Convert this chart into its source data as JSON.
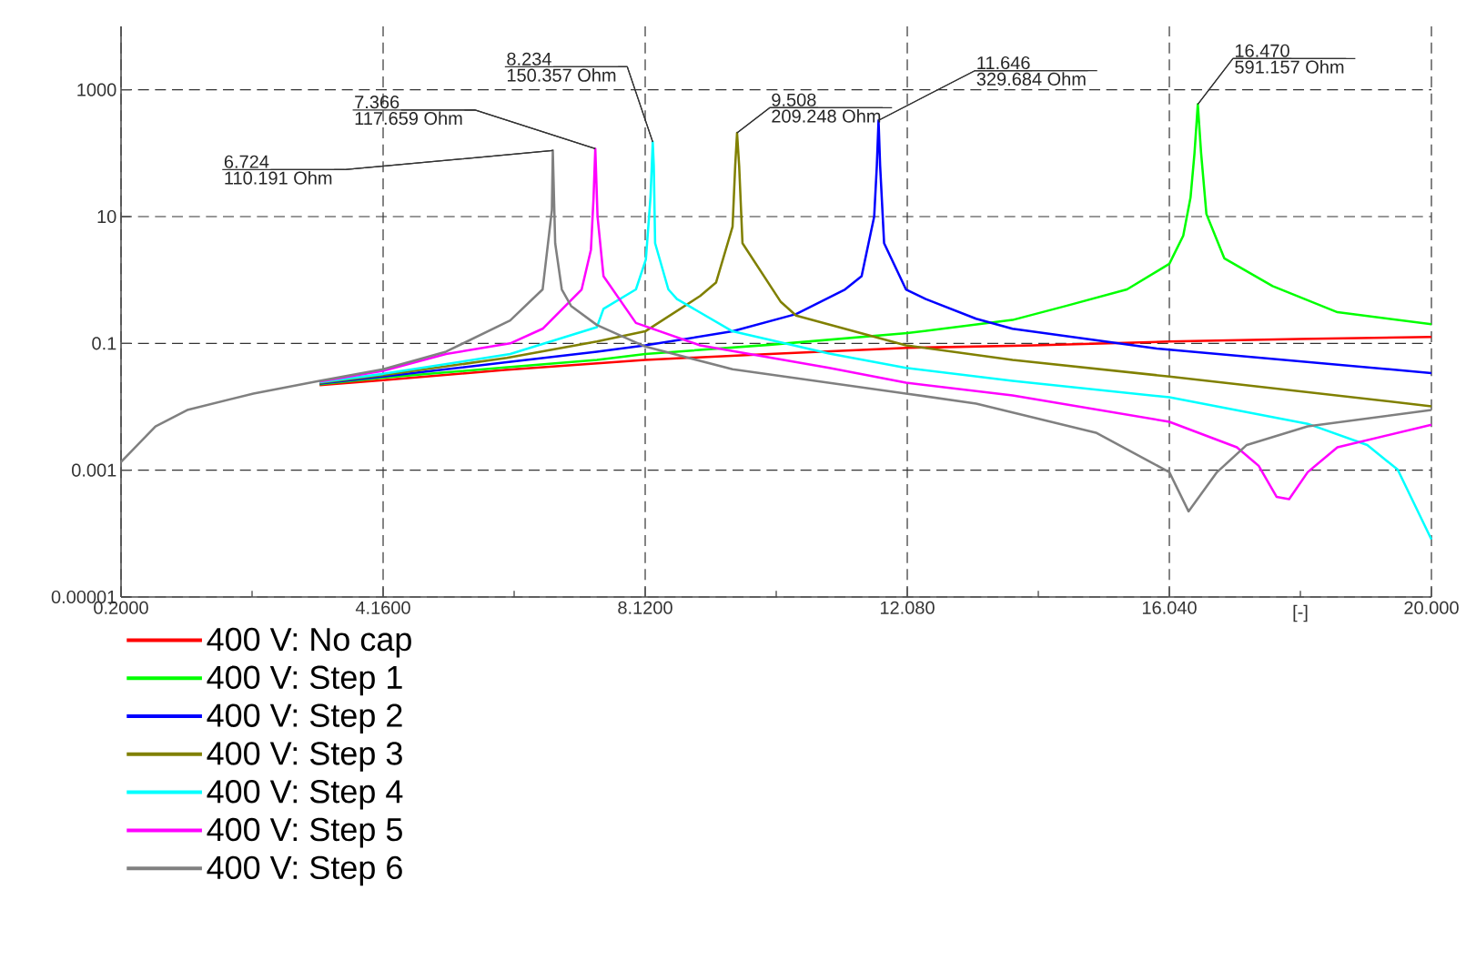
{
  "chart_data": {
    "type": "line",
    "xlabel": "[-]",
    "log": "y",
    "grid": true,
    "legend": "bottom left",
    "marker": "none",
    "xlim": [
      0.2,
      20
    ],
    "ylim": [
      1e-05,
      10000
    ],
    "xticks": [
      {
        "value": 0.2,
        "label": "0.2000"
      },
      {
        "value": 2.18,
        "label": null
      },
      {
        "value": 4.16,
        "label": "4.1600"
      },
      {
        "value": 6.14,
        "label": null
      },
      {
        "value": 8.12,
        "label": "8.1200"
      },
      {
        "value": 10.1,
        "label": null
      },
      {
        "value": 12.08,
        "label": "12.080"
      },
      {
        "value": 14.06,
        "label": null
      },
      {
        "value": 16.04,
        "label": "16.040"
      },
      {
        "value": 18.02,
        "label": null
      },
      {
        "value": 20,
        "label": "20.000"
      }
    ],
    "yticks": [
      {
        "value": 1e-05,
        "label": "0.00001"
      },
      {
        "value": 0.001,
        "label": "0.001"
      },
      {
        "value": 0.1,
        "label": "0.1"
      },
      10,
      1000
    ],
    "series": [
      {
        "name": "400 V: No cap",
        "color": "#ff0000",
        "x": [
          3.2,
          4.16,
          6,
          8.12,
          10,
          12.08,
          14,
          16.04,
          18,
          20
        ],
        "values": [
          0.022,
          0.0263,
          0.038,
          0.055,
          0.068,
          0.085,
          0.093,
          0.107,
          0.117,
          0.126
        ]
      },
      {
        "name": "400 V: Step 1",
        "color": "#00ff00",
        "x": [
          3.2,
          4.16,
          6,
          7.39,
          8.12,
          10,
          12.08,
          13.67,
          14.48,
          15.4,
          16.04,
          16.25,
          16.36,
          16.42,
          16.47,
          16.52,
          16.6,
          16.87,
          17.6,
          18.58,
          20
        ],
        "values": [
          0.0226,
          0.0288,
          0.0417,
          0.055,
          0.068,
          0.095,
          0.145,
          0.234,
          0.39,
          0.71,
          1.8,
          5,
          20,
          100,
          591.157,
          100,
          11,
          2.2,
          0.8,
          0.31,
          0.2
        ]
      },
      {
        "name": "400 V: Step 2",
        "color": "#0000ff",
        "x": [
          3.2,
          4.16,
          6,
          7.39,
          8.12,
          9.44,
          10.4,
          11.14,
          11.39,
          11.58,
          11.62,
          11.646,
          11.67,
          11.73,
          12.06,
          12.36,
          13.12,
          13.67,
          15.85,
          20
        ],
        "values": [
          0.0232,
          0.03,
          0.05,
          0.074,
          0.093,
          0.155,
          0.29,
          0.71,
          1.15,
          10,
          63,
          329.684,
          63,
          3.8,
          0.71,
          0.5,
          0.245,
          0.17,
          0.083,
          0.034
        ]
      },
      {
        "name": "400 V: Step 3",
        "color": "#808000",
        "x": [
          3.2,
          4.16,
          6.03,
          7.39,
          8.12,
          8.95,
          9.19,
          9.44,
          9.48,
          9.508,
          9.54,
          9.59,
          10.17,
          10.4,
          12.06,
          13.67,
          16.04,
          20
        ],
        "values": [
          0.0238,
          0.0316,
          0.059,
          0.107,
          0.155,
          0.56,
          0.91,
          6.9,
          63,
          209.248,
          63,
          3.8,
          0.45,
          0.275,
          0.093,
          0.055,
          0.03,
          0.0102
        ]
      },
      {
        "name": "400 V: Step 4",
        "color": "#00ffff",
        "x": [
          3.2,
          4.16,
          6.08,
          7.39,
          7.49,
          7.98,
          8.13,
          8.2,
          8.22,
          8.234,
          8.25,
          8.27,
          8.47,
          8.6,
          9.44,
          10.9,
          12.06,
          13.67,
          16.04,
          18.13,
          19.03,
          19.49,
          20
        ],
        "values": [
          0.0244,
          0.033,
          0.068,
          0.18,
          0.35,
          0.71,
          2.1,
          20,
          63,
          150.357,
          63,
          3.8,
          0.71,
          0.5,
          0.155,
          0.069,
          0.041,
          0.0257,
          0.0141,
          0.0054,
          0.0025,
          0.00102,
          8.1e-05
        ]
      },
      {
        "name": "400 V: Step 5",
        "color": "#ff00ff",
        "x": [
          3.2,
          4.16,
          5.11,
          6.08,
          6.57,
          7.16,
          7.3,
          7.34,
          7.366,
          7.4,
          7.49,
          7.98,
          8.95,
          10.9,
          12.06,
          13.67,
          16.04,
          17.06,
          17.39,
          17.66,
          17.85,
          18.13,
          18.58,
          20
        ],
        "values": [
          0.025,
          0.037,
          0.068,
          0.1,
          0.17,
          0.71,
          3,
          20,
          117.659,
          10,
          1.15,
          0.21,
          0.093,
          0.041,
          0.024,
          0.0151,
          0.0058,
          0.0023,
          0.00117,
          0.00038,
          0.00035,
          0.00093,
          0.0023,
          0.0052
        ]
      },
      {
        "name": "400 V: Step 6",
        "color": "#808080",
        "x": [
          0.2,
          0.72,
          1.2,
          2.2,
          3.2,
          4.16,
          5.11,
          6.08,
          6.57,
          6.71,
          6.724,
          6.76,
          6.86,
          7.0,
          7.39,
          8.12,
          9.44,
          12.06,
          13.12,
          14.93,
          16.04,
          16.33,
          16.76,
          17.21,
          18.13,
          20
        ],
        "values": [
          0.00135,
          0.0049,
          0.0089,
          0.0162,
          0.0256,
          0.039,
          0.074,
          0.23,
          0.71,
          12.6,
          110.191,
          3.8,
          0.71,
          0.39,
          0.195,
          0.089,
          0.039,
          0.0162,
          0.0112,
          0.0039,
          0.00093,
          0.000224,
          0.00093,
          0.0025,
          0.0049,
          0.0089
        ]
      }
    ],
    "annotations": [
      {
        "text": "6.724",
        "x": 6.724,
        "y": 110.191
      },
      {
        "text": "110.191 Ohm",
        "x": 6.724,
        "y": 110.191
      },
      {
        "text": "7.366",
        "x": 7.366,
        "y": 117.659
      },
      {
        "text": "117.659 Ohm",
        "x": 7.366,
        "y": 117.659
      },
      {
        "text": "8.234",
        "x": 8.234,
        "y": 150.357
      },
      {
        "text": "150.357 Ohm",
        "x": 8.234,
        "y": 150.357
      },
      {
        "text": "9.508",
        "x": 9.508,
        "y": 209.248
      },
      {
        "text": "209.248 Ohm",
        "x": 9.508,
        "y": 209.248
      },
      {
        "text": "11.646",
        "x": 11.646,
        "y": 329.684
      },
      {
        "text": "329.684 Ohm",
        "x": 11.646,
        "y": 329.684
      },
      {
        "text": "16.470",
        "x": 16.47,
        "y": 591.157
      },
      {
        "text": "591.157 Ohm",
        "x": 16.47,
        "y": 591.157
      }
    ]
  }
}
